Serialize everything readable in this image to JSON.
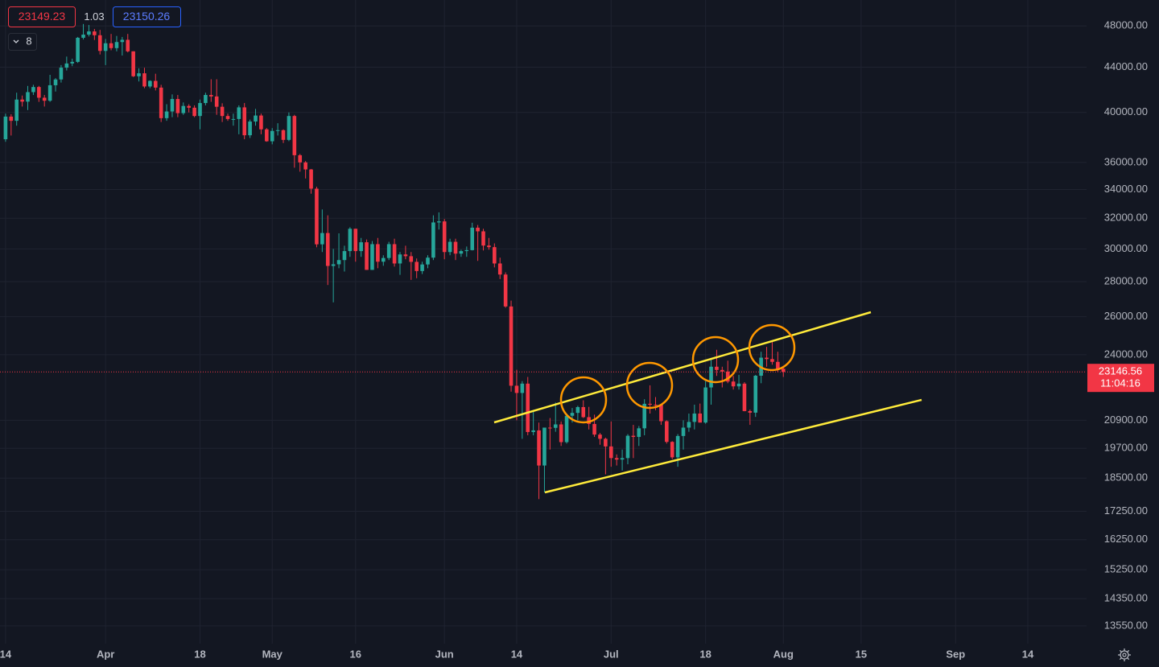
{
  "header": {
    "bid": "23149.23",
    "spread": "1.03",
    "ask": "23150.26",
    "indicator_count": "8"
  },
  "chart_data": {
    "type": "candlestick",
    "log_scale": true,
    "grid": true,
    "up_color": "#26a69a",
    "down_color": "#f23645",
    "last_price": 23146.56,
    "last_price_countdown": "11:04:16",
    "ylim": [
      13050,
      50700
    ],
    "yticks": [
      {
        "value": 48000,
        "label": "48000.00"
      },
      {
        "value": 44000,
        "label": "44000.00"
      },
      {
        "value": 40000,
        "label": "40000.00"
      },
      {
        "value": 36000,
        "label": "36000.00"
      },
      {
        "value": 34000,
        "label": "34000.00"
      },
      {
        "value": 32000,
        "label": "32000.00"
      },
      {
        "value": 30000,
        "label": "30000.00"
      },
      {
        "value": 28000,
        "label": "28000.00"
      },
      {
        "value": 26000,
        "label": "26000.00"
      },
      {
        "value": 24000,
        "label": "24000.00"
      },
      {
        "value": 20900,
        "label": "20900.00"
      },
      {
        "value": 19700,
        "label": "19700.00"
      },
      {
        "value": 18500,
        "label": "18500.00"
      },
      {
        "value": 17250,
        "label": "17250.00"
      },
      {
        "value": 16250,
        "label": "16250.00"
      },
      {
        "value": 15250,
        "label": "15250.00"
      },
      {
        "value": 14350,
        "label": "14350.00"
      },
      {
        "value": 13550,
        "label": "13550.00"
      }
    ],
    "xlim": [
      "03-13",
      "09-24"
    ],
    "xticks": [
      {
        "value": "03-14",
        "label": "14"
      },
      {
        "value": "04-01",
        "label": "Apr"
      },
      {
        "value": "04-18",
        "label": "18"
      },
      {
        "value": "05-01",
        "label": "May"
      },
      {
        "value": "05-16",
        "label": "16"
      },
      {
        "value": "06-01",
        "label": "Jun"
      },
      {
        "value": "06-14",
        "label": "14"
      },
      {
        "value": "07-01",
        "label": "Jul"
      },
      {
        "value": "07-18",
        "label": "18"
      },
      {
        "value": "08-01",
        "label": "Aug"
      },
      {
        "value": "08-15",
        "label": "15"
      },
      {
        "value": "09-01",
        "label": "Sep"
      },
      {
        "value": "09-14",
        "label": "14"
      }
    ],
    "x": [
      "03-14",
      "03-15",
      "03-16",
      "03-17",
      "03-18",
      "03-19",
      "03-20",
      "03-21",
      "03-22",
      "03-23",
      "03-24",
      "03-25",
      "03-26",
      "03-27",
      "03-28",
      "03-29",
      "03-30",
      "03-31",
      "04-01",
      "04-02",
      "04-03",
      "04-04",
      "04-05",
      "04-06",
      "04-07",
      "04-08",
      "04-09",
      "04-10",
      "04-11",
      "04-12",
      "04-13",
      "04-14",
      "04-15",
      "04-16",
      "04-17",
      "04-18",
      "04-19",
      "04-20",
      "04-21",
      "04-22",
      "04-23",
      "04-24",
      "04-25",
      "04-26",
      "04-27",
      "04-28",
      "04-29",
      "04-30",
      "05-01",
      "05-02",
      "05-03",
      "05-04",
      "05-05",
      "05-06",
      "05-07",
      "05-08",
      "05-09",
      "05-10",
      "05-11",
      "05-12",
      "05-13",
      "05-14",
      "05-15",
      "05-16",
      "05-17",
      "05-18",
      "05-19",
      "05-20",
      "05-21",
      "05-22",
      "05-23",
      "05-24",
      "05-25",
      "05-26",
      "05-27",
      "05-28",
      "05-29",
      "05-30",
      "05-31",
      "06-01",
      "06-02",
      "06-03",
      "06-04",
      "06-05",
      "06-06",
      "06-07",
      "06-08",
      "06-09",
      "06-10",
      "06-11",
      "06-12",
      "06-13",
      "06-14",
      "06-15",
      "06-16",
      "06-17",
      "06-18",
      "06-19",
      "06-20",
      "06-21",
      "06-22",
      "06-23",
      "06-24",
      "06-25",
      "06-26",
      "06-27",
      "06-28",
      "06-29",
      "06-30",
      "07-01",
      "07-02",
      "07-03",
      "07-04",
      "07-05",
      "07-06",
      "07-07",
      "07-08",
      "07-09",
      "07-10",
      "07-11",
      "07-12",
      "07-13",
      "07-14",
      "07-15",
      "07-16",
      "07-17",
      "07-18",
      "07-19",
      "07-20",
      "07-21",
      "07-22",
      "07-23",
      "07-24",
      "07-25",
      "07-26",
      "07-27",
      "07-28",
      "07-29",
      "07-30",
      "07-31",
      "08-01"
    ],
    "open": [
      37800,
      39650,
      39300,
      41100,
      40920,
      41750,
      42200,
      41260,
      41000,
      42360,
      42880,
      43960,
      44350,
      44500,
      46820,
      47130,
      47450,
      47070,
      45540,
      46280,
      45810,
      46400,
      46620,
      45500,
      43170,
      43440,
      42250,
      42750,
      42150,
      39520,
      40080,
      41150,
      39940,
      40550,
      40400,
      39700,
      40800,
      41500,
      41370,
      40480,
      39700,
      39450,
      39450,
      40430,
      38120,
      39240,
      39740,
      38600,
      37640,
      38470,
      38530,
      37750,
      39700,
      36550,
      36000,
      35470,
      34060,
      30290,
      31020,
      28940,
      29040,
      29300,
      29860,
      31300,
      29860,
      30420,
      28700,
      30300,
      29200,
      29430,
      30300,
      29090,
      29650,
      29540,
      29190,
      28630,
      29030,
      29450,
      31720,
      31790,
      29800,
      30450,
      29700,
      29860,
      29920,
      31370,
      31130,
      30210,
      30110,
      29090,
      28420,
      26570,
      22480,
      22140,
      22580,
      20390,
      20460,
      19000,
      20580,
      20570,
      20720,
      19960,
      21100,
      21230,
      21490,
      21040,
      20740,
      20280,
      20100,
      19780,
      19300,
      19240,
      19300,
      20230,
      20180,
      20550,
      21640,
      21600,
      21590,
      20860,
      19970,
      19330,
      20220,
      20580,
      20830,
      21200,
      20800,
      22400,
      23400,
      23240,
      23160,
      22680,
      22450,
      22580,
      21310,
      21240,
      22960,
      23850,
      23780,
      23640,
      23300
    ],
    "high": [
      39900,
      39850,
      41700,
      41450,
      42300,
      42400,
      42300,
      41500,
      43300,
      43000,
      44200,
      45000,
      44800,
      46900,
      48200,
      48100,
      47700,
      47600,
      46700,
      47200,
      47000,
      46900,
      47200,
      45500,
      43900,
      43950,
      42800,
      43400,
      42400,
      40700,
      41550,
      41500,
      40850,
      40700,
      40600,
      41100,
      41700,
      42900,
      42900,
      40780,
      39900,
      39900,
      40600,
      40800,
      39400,
      40300,
      39900,
      38700,
      38700,
      39100,
      38600,
      40000,
      39800,
      36650,
      36100,
      35500,
      34200,
      32600,
      32200,
      30000,
      31000,
      30200,
      31400,
      31300,
      30700,
      30600,
      30500,
      30700,
      29600,
      30450,
      30650,
      29800,
      30200,
      29800,
      29400,
      29200,
      29600,
      32200,
      32400,
      31950,
      30650,
      30650,
      29950,
      30150,
      31700,
      31550,
      31300,
      30700,
      30350,
      29450,
      28550,
      26900,
      23250,
      22700,
      22900,
      21300,
      20800,
      20500,
      21000,
      21700,
      20850,
      21200,
      21450,
      21550,
      21800,
      21500,
      21150,
      20350,
      20150,
      20850,
      19450,
      19650,
      20300,
      20700,
      20650,
      21850,
      22500,
      21950,
      21600,
      20900,
      20000,
      20300,
      20900,
      21200,
      21600,
      21650,
      22700,
      23750,
      24250,
      23400,
      23700,
      22950,
      23000,
      22650,
      21380,
      23000,
      24150,
      24400,
      24650,
      24150,
      23450
    ],
    "low": [
      37600,
      38100,
      38900,
      40500,
      40200,
      41500,
      40900,
      40500,
      40900,
      41800,
      42600,
      43700,
      44100,
      44400,
      46650,
      46950,
      46600,
      45200,
      44200,
      45600,
      45500,
      45100,
      45400,
      43100,
      42700,
      42100,
      42100,
      41900,
      39200,
      39300,
      39600,
      39600,
      39800,
      40000,
      39600,
      38600,
      40600,
      40900,
      39800,
      39200,
      39300,
      38900,
      38200,
      37800,
      37900,
      38900,
      38200,
      37600,
      37400,
      38100,
      37500,
      37650,
      35600,
      35300,
      34800,
      33700,
      30100,
      29800,
      27800,
      26800,
      28800,
      28600,
      29500,
      29200,
      29500,
      28700,
      28700,
      28800,
      28950,
      29300,
      28900,
      28400,
      29350,
      28100,
      28200,
      28450,
      28800,
      29300,
      31250,
      29350,
      29600,
      29300,
      29500,
      29500,
      29900,
      29250,
      29900,
      29950,
      28850,
      28150,
      26500,
      22200,
      20900,
      20100,
      20250,
      20250,
      17700,
      17950,
      19650,
      20400,
      19800,
      19900,
      20800,
      20900,
      21000,
      20500,
      20180,
      19850,
      18650,
      18950,
      19000,
      18800,
      19050,
      19300,
      19800,
      20250,
      21200,
      21350,
      20700,
      19900,
      19250,
      18950,
      19650,
      20400,
      20500,
      20800,
      20750,
      21600,
      22950,
      22400,
      22600,
      22300,
      22300,
      21300,
      20700,
      21050,
      22600,
      23400,
      23500,
      23150,
      22900
    ],
    "close": [
      39650,
      39300,
      41100,
      40920,
      41750,
      42200,
      41260,
      41000,
      42360,
      42880,
      43960,
      44350,
      44500,
      46820,
      47130,
      47450,
      47070,
      45540,
      46280,
      45810,
      46400,
      46620,
      45500,
      43170,
      43440,
      42250,
      42750,
      42150,
      39520,
      40080,
      41150,
      39940,
      40550,
      40400,
      39700,
      40800,
      41500,
      41370,
      40480,
      39700,
      39450,
      39450,
      40430,
      38120,
      39240,
      39740,
      38600,
      37640,
      38470,
      38530,
      37750,
      39700,
      36550,
      36000,
      35470,
      34060,
      30290,
      31020,
      28940,
      29040,
      29300,
      29860,
      31300,
      29860,
      30420,
      28700,
      30300,
      29200,
      29430,
      30300,
      29090,
      29650,
      29540,
      29190,
      28630,
      29030,
      29450,
      31720,
      31790,
      29800,
      30450,
      29700,
      29860,
      29920,
      31370,
      31130,
      30210,
      30110,
      29090,
      28420,
      26570,
      22480,
      22140,
      22580,
      20390,
      20460,
      19000,
      20580,
      20570,
      20720,
      19960,
      21100,
      21230,
      21490,
      21040,
      20740,
      20280,
      20100,
      19780,
      19300,
      19240,
      19300,
      20230,
      20180,
      20550,
      21640,
      21600,
      21590,
      20860,
      19970,
      19330,
      20220,
      20580,
      20830,
      21200,
      20800,
      22400,
      23400,
      23240,
      23160,
      22680,
      22450,
      22580,
      21310,
      21240,
      22960,
      23850,
      23780,
      23640,
      23300,
      23147
    ]
  }
}
